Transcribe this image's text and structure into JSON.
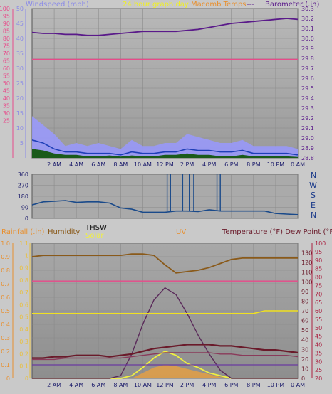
{
  "header": {
    "windspeed_label": "Windspeed (mph)",
    "graph_day_label": "24 hour graph day",
    "macomb_label": "Macomb Temps",
    "dashes": "---",
    "barometer_label": "Barometer (.in)"
  },
  "direction_labels": [
    "N",
    "W",
    "S",
    "E",
    "N"
  ],
  "bottom_header": {
    "rainfall_label": "Rainfall (.in)",
    "humidity_label": "Humidity",
    "thsw_label": "THSW",
    "solar_label": "Solar",
    "uv_label": "UV",
    "temp_dew_label": "Temperature (°F) Dew Point (°F)"
  },
  "colors": {
    "wind_fill": "#9999ff",
    "wind_avg": "#1f3fb8",
    "wind_dark": "#1a5a1a",
    "barometer": "#5a1a8a",
    "pink_line": "#e84a8a",
    "direction": "#1a4a8a",
    "humidity": "#8a5a1a",
    "solar": "#f0f040",
    "uv": "#5a2a5a",
    "temperature": "#6a1a2a",
    "dew": "#8a3a5a",
    "rain_orange": "#e8a040",
    "thsw_line": "#f0e020",
    "rainfall_axis": "#e89030",
    "temp_axis": "#aa2040"
  },
  "chart_data": [
    {
      "type": "area",
      "name": "wind-barometer",
      "x_ticks": [
        "2 AM",
        "4 AM",
        "6 AM",
        "8 AM",
        "10 AM",
        "12 PM",
        "2 PM",
        "4 PM",
        "6 PM",
        "8 PM",
        "10 PM",
        "0 AM"
      ],
      "left_axis_outer": {
        "range": [
          0,
          100
        ],
        "ticks": [
          25,
          30,
          35,
          40,
          45,
          50,
          55,
          60,
          65,
          70,
          75,
          80,
          85,
          90,
          95,
          100
        ]
      },
      "left_axis_inner": {
        "range": [
          0,
          50
        ],
        "ticks": [
          5,
          10,
          15,
          20,
          25,
          30,
          35,
          40,
          45,
          50
        ]
      },
      "right_axis": {
        "label": "Barometer (.in)",
        "range": [
          28.8,
          30.3
        ],
        "ticks": [
          28.8,
          28.9,
          29.0,
          29.1,
          29.2,
          29.3,
          29.4,
          29.5,
          29.6,
          29.7,
          29.8,
          29.9,
          30.0,
          30.1,
          30.2,
          30.3
        ]
      },
      "hours": [
        0,
        1,
        2,
        3,
        4,
        5,
        6,
        7,
        8,
        9,
        10,
        11,
        12,
        13,
        14,
        15,
        16,
        17,
        18,
        19,
        20,
        21,
        22,
        23,
        24
      ],
      "barometer": [
        30.06,
        30.05,
        30.05,
        30.04,
        30.04,
        30.03,
        30.03,
        30.04,
        30.05,
        30.06,
        30.07,
        30.07,
        30.07,
        30.07,
        30.08,
        30.09,
        30.11,
        30.13,
        30.15,
        30.16,
        30.17,
        30.18,
        30.19,
        30.2,
        30.19
      ],
      "pink_line": [
        29.79,
        29.79,
        29.79,
        29.79,
        29.79,
        29.79,
        29.79,
        29.79,
        29.79,
        29.79,
        29.79,
        29.79,
        29.79,
        29.79,
        29.79,
        29.79,
        29.79,
        29.79,
        29.79,
        29.79,
        29.79,
        29.79,
        29.79,
        29.79,
        29.79
      ],
      "wind_gust": [
        14,
        11,
        8,
        4,
        5,
        4,
        5,
        4,
        3,
        6,
        4,
        4,
        5,
        5,
        8,
        7,
        6,
        5,
        5,
        6,
        4,
        4,
        4,
        4,
        3
      ],
      "wind_avg": [
        6,
        5,
        3,
        2,
        2,
        1.5,
        1.5,
        1.5,
        1,
        2,
        1.5,
        1.5,
        2,
        2,
        3,
        2.5,
        2.5,
        2,
        2,
        2.5,
        1.5,
        1.5,
        1.5,
        1.5,
        1
      ],
      "wind_dark": [
        3,
        2.5,
        1.5,
        1,
        1,
        0.5,
        0.5,
        0.8,
        0.4,
        0.8,
        0.5,
        0.5,
        1,
        1,
        1.5,
        1,
        1,
        0.5,
        0.5,
        1,
        0.5,
        0.5,
        0.5,
        0.5,
        0.3
      ]
    },
    {
      "type": "line",
      "name": "wind-direction",
      "y_range": [
        0,
        360
      ],
      "y_ticks": [
        0,
        90,
        180,
        270,
        360
      ],
      "hours": [
        0,
        1,
        2,
        3,
        4,
        5,
        6,
        7,
        8,
        9,
        10,
        11,
        12,
        13,
        14,
        15,
        16,
        17,
        18,
        19,
        20,
        21,
        22,
        23,
        24
      ],
      "direction": [
        110,
        135,
        140,
        145,
        130,
        135,
        135,
        125,
        85,
        75,
        50,
        50,
        50,
        60,
        60,
        55,
        70,
        60,
        60,
        60,
        60,
        60,
        40,
        35,
        30
      ]
    },
    {
      "type": "line",
      "name": "rain-humidity-temp",
      "x_ticks": [
        "2 AM",
        "4 AM",
        "6 AM",
        "8 AM",
        "10 AM",
        "12 PM",
        "2 PM",
        "4 PM",
        "6 PM",
        "8 PM",
        "10 PM",
        "0 AM"
      ],
      "rainfall_axis": {
        "range": [
          0,
          1.0
        ],
        "ticks": [
          0,
          0.1,
          0.2,
          0.3,
          0.4,
          0.5,
          0.6,
          0.7,
          0.8,
          0.9,
          1.0
        ]
      },
      "humidity_axis": {
        "range": [
          0,
          1.1
        ],
        "ticks": [
          0,
          0.1,
          0.2,
          0.3,
          0.4,
          0.5,
          0.6,
          0.7,
          0.8,
          0.9,
          1,
          1.1
        ]
      },
      "temp_axis_inner": {
        "range": [
          0,
          140
        ],
        "ticks": [
          0,
          10,
          20,
          30,
          40,
          50,
          60,
          70,
          80,
          90,
          100,
          110,
          120,
          130
        ]
      },
      "temp_axis_outer": {
        "range": [
          20,
          100
        ],
        "ticks": [
          20,
          25,
          30,
          35,
          40,
          45,
          50,
          55,
          60,
          65,
          70,
          75,
          80,
          85,
          90,
          95,
          100
        ]
      },
      "hours": [
        0,
        1,
        2,
        3,
        4,
        5,
        6,
        7,
        8,
        9,
        10,
        11,
        12,
        13,
        14,
        15,
        16,
        17,
        18,
        19,
        20,
        21,
        22,
        23,
        24
      ],
      "humidity": [
        0.9,
        0.91,
        0.91,
        0.91,
        0.91,
        0.91,
        0.91,
        0.91,
        0.91,
        0.92,
        0.92,
        0.91,
        0.84,
        0.78,
        0.79,
        0.8,
        0.82,
        0.85,
        0.88,
        0.89,
        0.89,
        0.89,
        0.89,
        0.89,
        0.89
      ],
      "pink": [
        0.72,
        0.72,
        0.72,
        0.72,
        0.72,
        0.72,
        0.72,
        0.72,
        0.72,
        0.72,
        0.72,
        0.72,
        0.72,
        0.72,
        0.72,
        0.72,
        0.72,
        0.72,
        0.72,
        0.72,
        0.72,
        0.72,
        0.72,
        0.72,
        0.72
      ],
      "thsw": [
        0.48,
        0.48,
        0.48,
        0.48,
        0.48,
        0.48,
        0.48,
        0.48,
        0.48,
        0.48,
        0.48,
        0.48,
        0.48,
        0.48,
        0.48,
        0.48,
        0.48,
        0.48,
        0.48,
        0.48,
        0.48,
        0.5,
        0.5,
        0.5,
        0.5
      ],
      "uv": [
        0,
        0,
        0,
        0,
        0,
        0,
        0,
        0,
        0.02,
        0.18,
        0.4,
        0.58,
        0.67,
        0.62,
        0.48,
        0.32,
        0.18,
        0.06,
        0,
        0,
        0,
        0,
        0,
        0,
        0
      ],
      "temperature": [
        0.15,
        0.15,
        0.16,
        0.16,
        0.17,
        0.17,
        0.17,
        0.16,
        0.17,
        0.18,
        0.2,
        0.22,
        0.23,
        0.24,
        0.25,
        0.25,
        0.25,
        0.24,
        0.24,
        0.23,
        0.22,
        0.21,
        0.21,
        0.2,
        0.19
      ],
      "dew": [
        0.14,
        0.14,
        0.14,
        0.15,
        0.15,
        0.15,
        0.15,
        0.15,
        0.15,
        0.16,
        0.17,
        0.18,
        0.19,
        0.19,
        0.19,
        0.19,
        0.19,
        0.18,
        0.18,
        0.17,
        0.17,
        0.17,
        0.17,
        0.17,
        0.16
      ],
      "purple_low": [
        0.1,
        0.1,
        0.1,
        0.1,
        0.1,
        0.1,
        0.1,
        0.1,
        0.1,
        0.1,
        0.1,
        0.1,
        0.1,
        0.1,
        0.1,
        0.1,
        0.1,
        0.1,
        0.1,
        0.1,
        0.1,
        0.1,
        0.1,
        0.1,
        0.1
      ],
      "solar": [
        0,
        0,
        0,
        0,
        0,
        0,
        0,
        0,
        0,
        0.02,
        0.08,
        0.15,
        0.2,
        0.17,
        0.11,
        0.08,
        0.04,
        0.02,
        0,
        0,
        0,
        0,
        0,
        0,
        0
      ],
      "rain_orange": [
        0,
        0,
        0,
        0,
        0,
        0,
        0,
        0,
        0,
        0,
        0.04,
        0.08,
        0.1,
        0.09,
        0.07,
        0.05,
        0.03,
        0.01,
        0,
        0,
        0,
        0,
        0,
        0,
        0
      ]
    }
  ]
}
